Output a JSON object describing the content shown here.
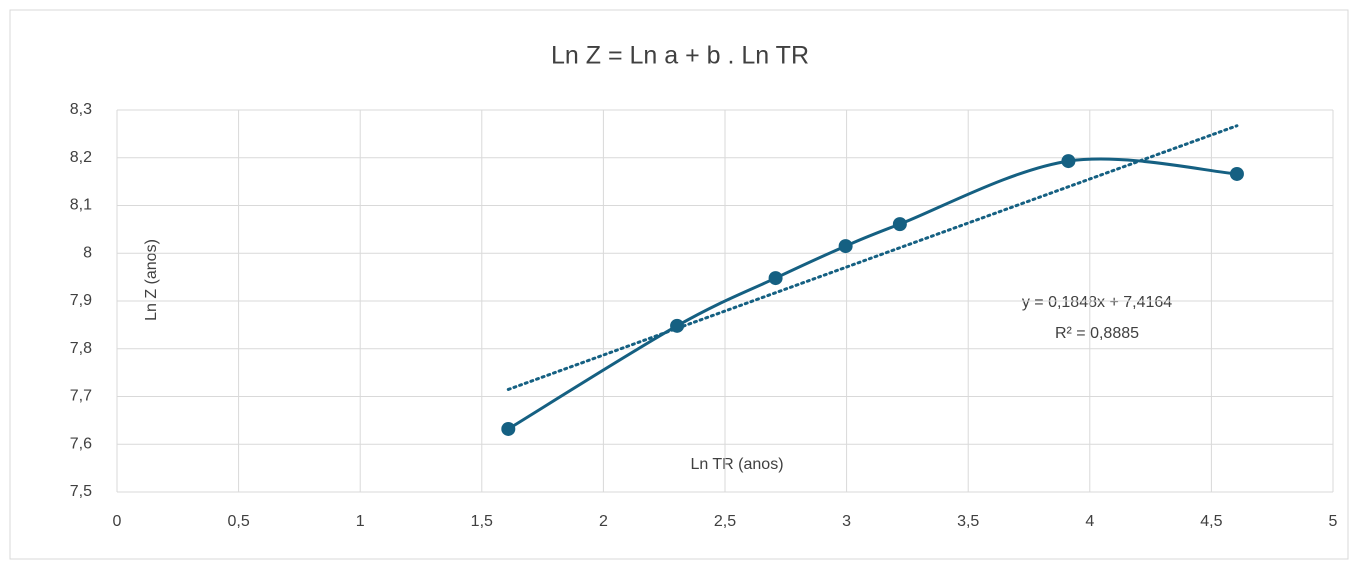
{
  "chart_data": {
    "type": "scatter",
    "title": "Ln Z = Ln a + b . Ln TR",
    "x_label": "Ln TR (anos)",
    "y_label": "Ln Z (anos)",
    "series": [
      {
        "name": "Ln Z",
        "color": "#156082",
        "x": [
          1.609,
          2.303,
          2.708,
          2.996,
          3.219,
          3.912,
          4.605
        ],
        "values": [
          7.632,
          7.848,
          7.948,
          8.015,
          8.061,
          8.193,
          8.166
        ]
      }
    ],
    "smooth": true,
    "trendline": {
      "type": "linear",
      "equation": "y = 0,1848x + 7,4164",
      "r_squared": "R² = 0,8885"
    },
    "xlim": [
      0,
      5
    ],
    "xticks": [
      0,
      {
        "value": 0.5,
        "label": "0,5"
      },
      1,
      {
        "value": 1.5,
        "label": "1,5"
      },
      2,
      {
        "value": 2.5,
        "label": "2,5"
      },
      3,
      {
        "value": 3.5,
        "label": "3,5"
      },
      4,
      {
        "value": 4.5,
        "label": "4,5"
      },
      5
    ],
    "ylim": [
      7.5,
      8.3
    ],
    "yticks": [
      {
        "value": 7.5,
        "label": "7,5"
      },
      {
        "value": 7.6,
        "label": "7,6"
      },
      {
        "value": 7.7,
        "label": "7,7"
      },
      {
        "value": 7.8,
        "label": "7,8"
      },
      {
        "value": 7.9,
        "label": "7,9"
      },
      8,
      {
        "value": 8.1,
        "label": "8,1"
      },
      {
        "value": 8.2,
        "label": "8,2"
      },
      {
        "value": 8.3,
        "label": "8,3"
      }
    ],
    "grid": true
  }
}
